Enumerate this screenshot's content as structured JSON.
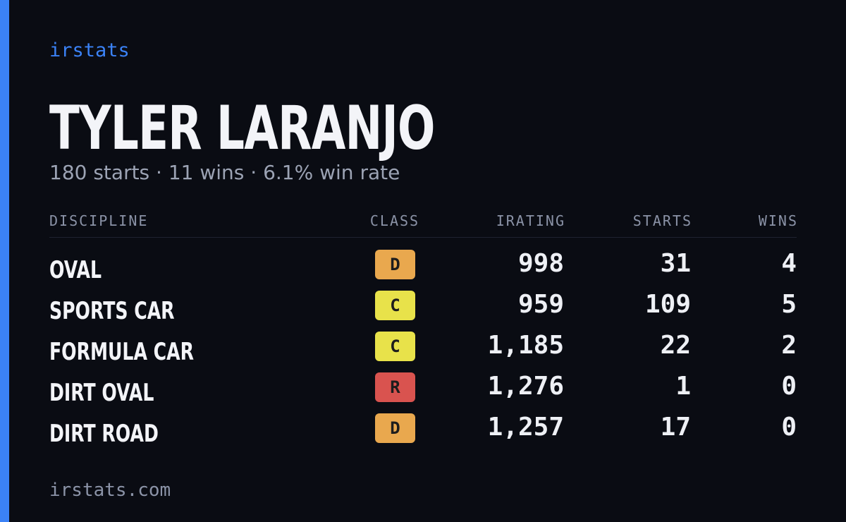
{
  "brand": "irstats",
  "driver": {
    "name": "TYLER LARANJO",
    "summary": "180 starts · 11 wins · 6.1% win rate"
  },
  "table": {
    "headers": [
      "DISCIPLINE",
      "CLASS",
      "IRATING",
      "STARTS",
      "WINS"
    ],
    "rows": [
      {
        "discipline": "OVAL",
        "class": "D",
        "class_color": "#e9a84e",
        "irating": "998",
        "starts": 31,
        "wins": 4
      },
      {
        "discipline": "SPORTS CAR",
        "class": "C",
        "class_color": "#e8e24a",
        "irating": "959",
        "starts": 109,
        "wins": 5
      },
      {
        "discipline": "FORMULA CAR",
        "class": "C",
        "class_color": "#e8e24a",
        "irating": "1,185",
        "starts": 22,
        "wins": 2
      },
      {
        "discipline": "DIRT OVAL",
        "class": "R",
        "class_color": "#d9534f",
        "irating": "1,276",
        "starts": 1,
        "wins": 0
      },
      {
        "discipline": "DIRT ROAD",
        "class": "D",
        "class_color": "#e9a84e",
        "irating": "1,257",
        "starts": 17,
        "wins": 0
      }
    ]
  },
  "footer": "irstats.com"
}
